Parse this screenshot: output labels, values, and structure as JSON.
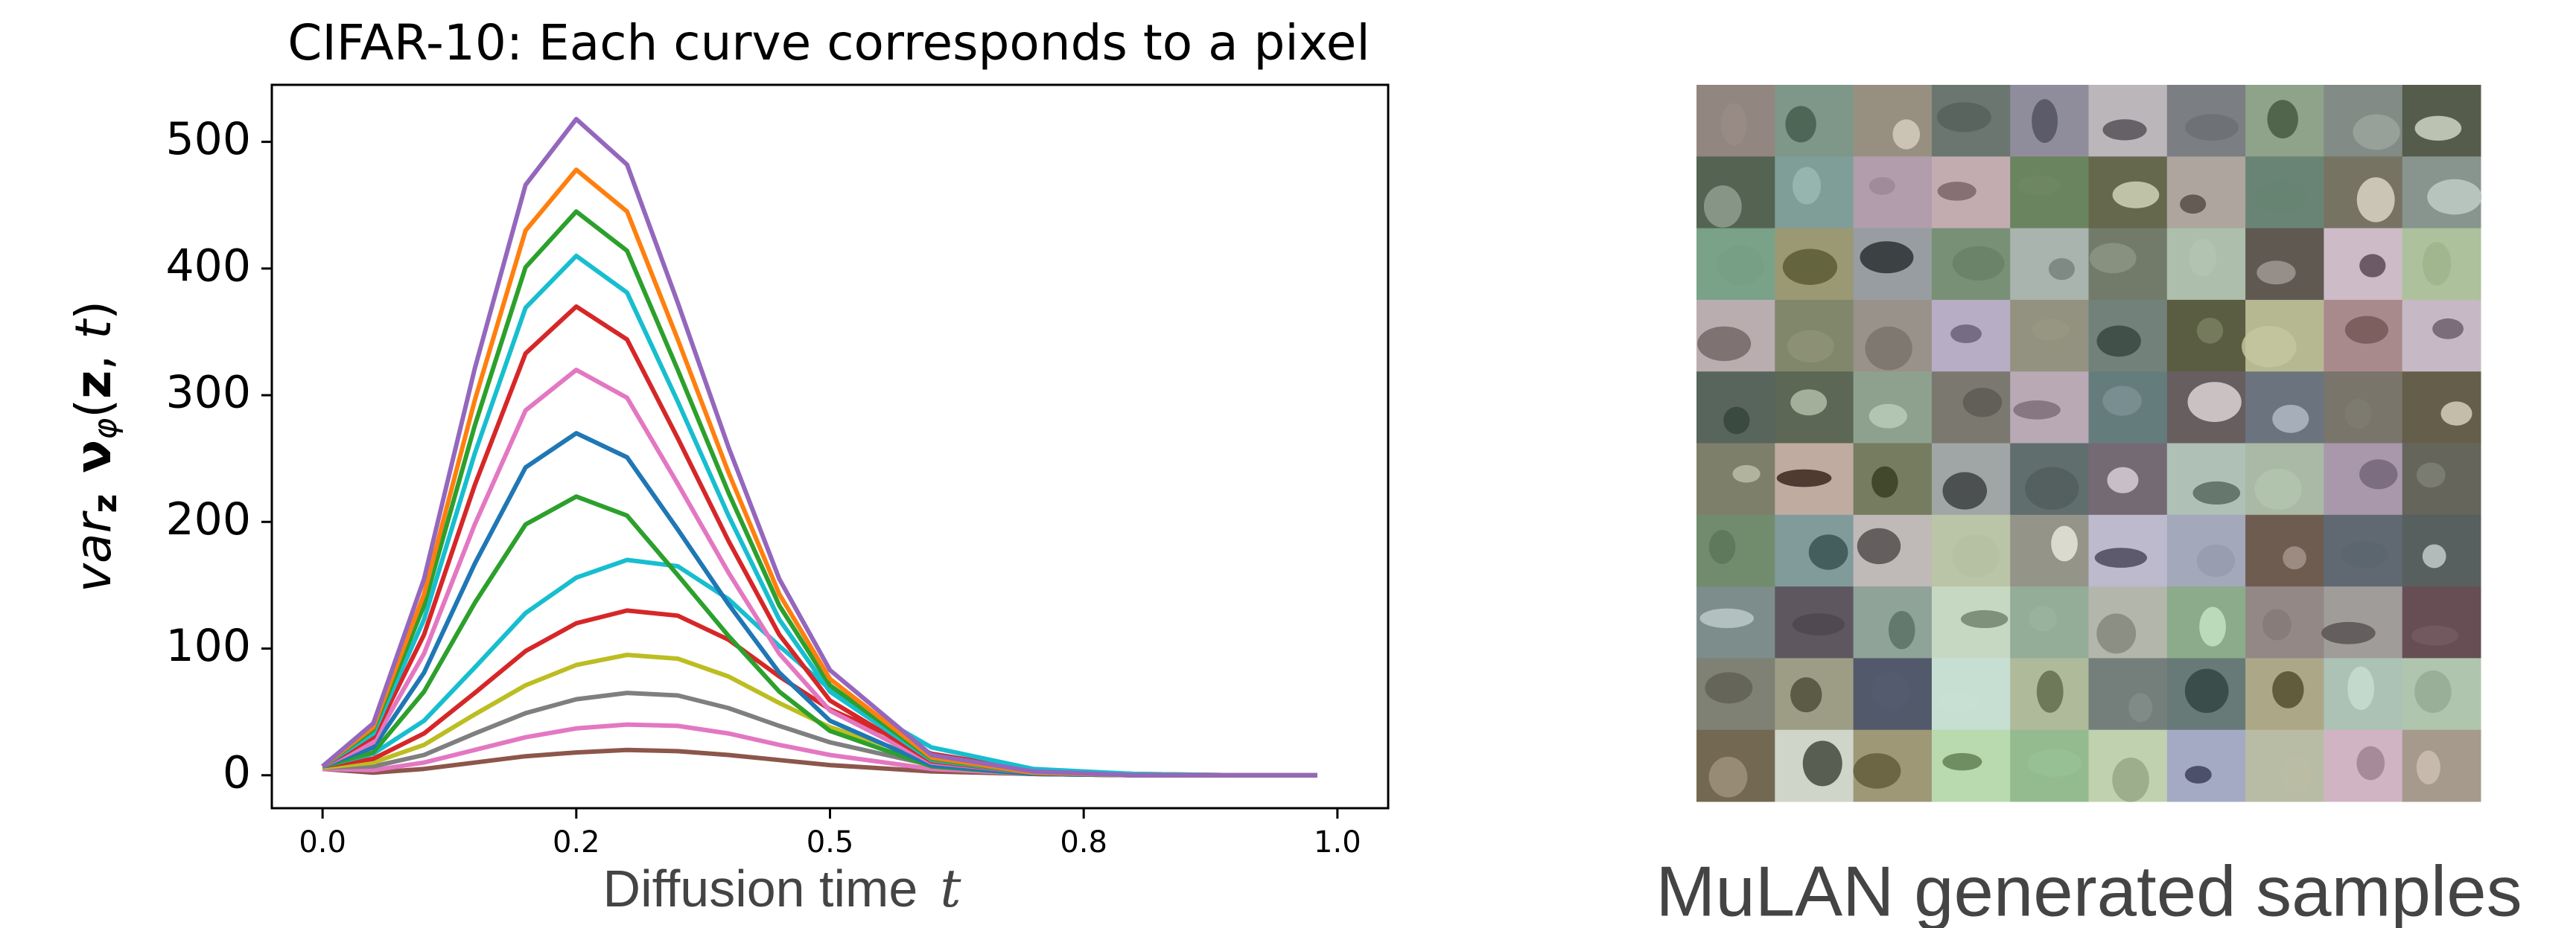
{
  "chart_data": {
    "type": "line",
    "title": "CIFAR-10: Each curve corresponds to a pixel",
    "xlabel": [
      "Diffusion time",
      "t"
    ],
    "ylabel": [
      "var",
      "z",
      "ν",
      "φ",
      "(",
      "z",
      ", ",
      "t",
      ")"
    ],
    "x": [
      0,
      0.05,
      0.1,
      0.15,
      0.2,
      0.25,
      0.3,
      0.35,
      0.4,
      0.45,
      0.5,
      0.6,
      0.7,
      0.8,
      0.9,
      0.98
    ],
    "xlim": [
      -0.05,
      1.05
    ],
    "xticks": [
      {
        "value": 0,
        "label": "0.0"
      },
      {
        "value": 0.25,
        "label": "0.2"
      },
      {
        "value": 0.5,
        "label": "0.5"
      },
      {
        "value": 0.75,
        "label": "0.8"
      },
      {
        "value": 1,
        "label": "1.0"
      }
    ],
    "ylim": [
      -26,
      545
    ],
    "yticks": [
      0,
      100,
      200,
      300,
      400,
      500
    ],
    "series": [
      {
        "color": "#8c564b",
        "values": [
          5,
          2,
          5,
          10,
          15,
          18,
          20,
          19,
          16,
          12,
          8,
          3,
          1,
          0,
          0,
          0
        ]
      },
      {
        "color": "#e377c2",
        "values": [
          5,
          4,
          10,
          20,
          30,
          37,
          40,
          39,
          33,
          24,
          16,
          5,
          1,
          0,
          0,
          0
        ]
      },
      {
        "color": "#7f7f7f",
        "values": [
          6,
          7,
          16,
          33,
          49,
          60,
          65,
          63,
          53,
          39,
          26,
          8,
          2,
          0,
          0,
          0
        ]
      },
      {
        "color": "#bcbd22",
        "values": [
          6,
          10,
          24,
          48,
          71,
          87,
          95,
          92,
          78,
          57,
          38,
          12,
          3,
          0,
          0,
          0
        ]
      },
      {
        "color": "#d62728",
        "values": [
          7,
          13,
          33,
          65,
          98,
          120,
          130,
          126,
          107,
          78,
          52,
          17,
          4,
          1,
          0,
          0
        ]
      },
      {
        "color": "#17becf",
        "values": [
          7,
          17,
          43,
          85,
          128,
          156,
          170,
          165,
          139,
          102,
          68,
          22,
          5,
          1,
          0,
          0
        ]
      },
      {
        "color": "#2ca02c",
        "values": [
          7,
          18,
          66,
          136,
          198,
          220,
          205,
          158,
          110,
          66,
          35,
          7,
          1,
          0,
          0,
          0
        ]
      },
      {
        "color": "#1f77b4",
        "values": [
          7,
          22,
          81,
          167,
          243,
          270,
          251,
          194,
          135,
          81,
          43,
          8,
          1,
          0,
          0,
          0
        ]
      },
      {
        "color": "#e377c2",
        "values": [
          7,
          26,
          96,
          198,
          288,
          320,
          298,
          230,
          160,
          96,
          51,
          10,
          2,
          0,
          0,
          0
        ]
      },
      {
        "color": "#d62728",
        "values": [
          7,
          30,
          111,
          229,
          333,
          370,
          344,
          266,
          185,
          111,
          59,
          11,
          2,
          0,
          0,
          0
        ]
      },
      {
        "color": "#17becf",
        "values": [
          7,
          33,
          123,
          254,
          369,
          410,
          381,
          295,
          205,
          123,
          66,
          12,
          2,
          0,
          0,
          0
        ]
      },
      {
        "color": "#2ca02c",
        "values": [
          7,
          36,
          134,
          276,
          401,
          445,
          414,
          320,
          223,
          134,
          71,
          13,
          2,
          0,
          0,
          0
        ]
      },
      {
        "color": "#ff7f0e",
        "values": [
          7,
          38,
          143,
          296,
          430,
          478,
          445,
          344,
          239,
          143,
          76,
          14,
          2,
          0,
          0,
          0
        ]
      },
      {
        "color": "#9467bd",
        "values": [
          7,
          41,
          155,
          321,
          466,
          518,
          482,
          373,
          259,
          155,
          83,
          16,
          3,
          0,
          0,
          0
        ]
      }
    ],
    "caption": "MuLAN generated samples"
  }
}
